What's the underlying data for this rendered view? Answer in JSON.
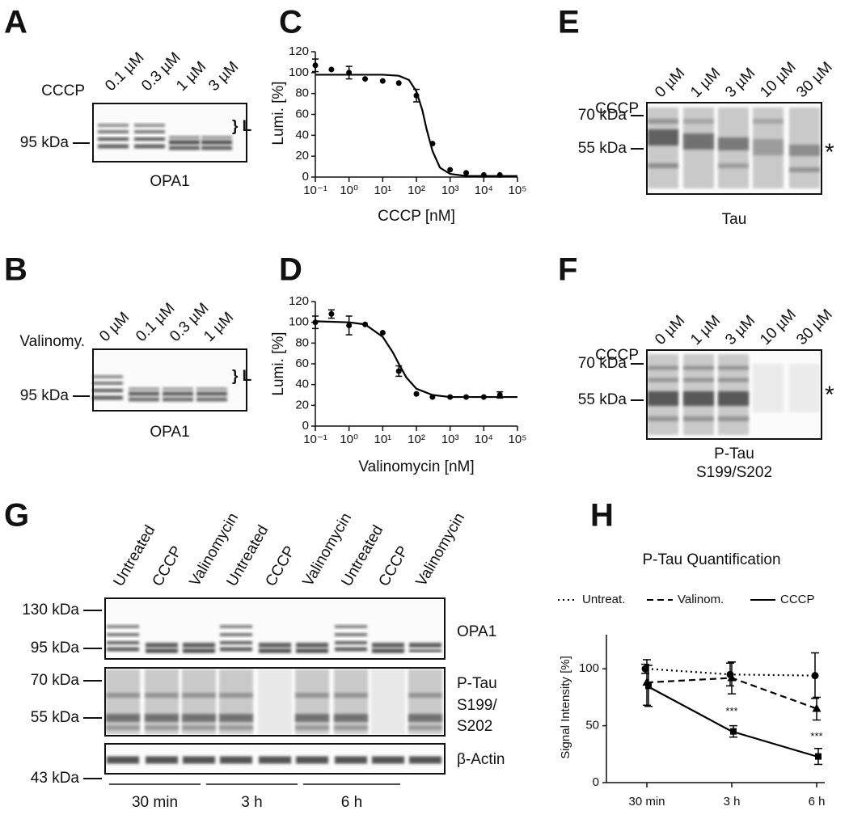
{
  "panels": {
    "A": {
      "letter": "A",
      "treatment": "CCCP",
      "lanes": [
        "0.1 µM",
        "0.3 µM",
        "1 µM",
        "3 µM"
      ],
      "markers": [
        "95 kDa"
      ],
      "bracket": "} L",
      "caption": [
        "OPA1"
      ]
    },
    "B": {
      "letter": "B",
      "treatment": "Valinomy.",
      "lanes": [
        "0 µM",
        "0.1 µM",
        "0.3 µM",
        "1 µM"
      ],
      "markers": [
        "95 kDa"
      ],
      "bracket": "} L",
      "caption": [
        "OPA1"
      ]
    },
    "E": {
      "letter": "E",
      "treatment": "CCCP",
      "lanes": [
        "0 µM",
        "1 µM",
        "3 µM",
        "10 µM",
        "30 µM"
      ],
      "markers": [
        "70 kDa",
        "55 kDa"
      ],
      "asterisk": "*",
      "caption": [
        "Tau"
      ]
    },
    "F": {
      "letter": "F",
      "treatment": "CCCP",
      "lanes": [
        "0 µM",
        "1 µM",
        "3 µM",
        "10 µM",
        "30 µM"
      ],
      "markers": [
        "70 kDa",
        "55 kDa"
      ],
      "asterisk": "*",
      "caption": [
        "P-Tau",
        "S199/S202"
      ]
    },
    "G": {
      "letter": "G",
      "lanes": [
        "Untreated",
        "CCCP",
        "Valinomycin",
        "Untreated",
        "CCCP",
        "Valinomycin",
        "Untreated",
        "CCCP",
        "Valinomycin"
      ],
      "markers": [
        "130 kDa",
        "95 kDa",
        "70 kDa",
        "55 kDa",
        "43 kDa"
      ],
      "blot_labels": [
        "OPA1",
        "P-Tau",
        "S199/",
        "S202",
        "β-Actin"
      ],
      "timepoints": [
        "30 min",
        "3 h",
        "6 h"
      ]
    }
  },
  "chart_data": [
    {
      "type": "scatter",
      "letter": "C",
      "xlabel": "CCCP [nM]",
      "ylabel": "Lumi. [%]",
      "xscale": "log",
      "color": "#000000",
      "xlim": [
        0.1,
        100000
      ],
      "xticks": [
        {
          "value": 0.1,
          "label": "10⁻¹"
        },
        {
          "value": 1,
          "label": "10⁰"
        },
        {
          "value": 10,
          "label": "10¹"
        },
        {
          "value": 100,
          "label": "10²"
        },
        {
          "value": 1000,
          "label": "10³"
        },
        {
          "value": 10000,
          "label": "10⁴"
        },
        {
          "value": 100000,
          "label": "10⁵"
        }
      ],
      "ylim": [
        0,
        120
      ],
      "yticks": [
        0,
        20,
        40,
        60,
        80,
        100,
        120
      ],
      "series": [
        {
          "x": [
            0.1,
            0.3,
            1,
            3,
            10,
            30,
            100,
            300,
            1000,
            3000,
            10000,
            30000
          ],
          "values": [
            107,
            103,
            100,
            94,
            92,
            90,
            78,
            32,
            7,
            4,
            2,
            2
          ],
          "errors": [
            6,
            null,
            6,
            null,
            null,
            null,
            6,
            null,
            null,
            null,
            null,
            null
          ]
        }
      ],
      "fit": {
        "x": [
          0.1,
          1,
          10,
          30,
          60,
          100,
          150,
          200,
          300,
          500,
          1000,
          3000,
          100000
        ],
        "values": [
          98,
          98,
          98,
          97,
          93,
          82,
          64,
          46,
          25,
          9,
          3,
          1,
          1
        ]
      }
    },
    {
      "type": "scatter",
      "letter": "D",
      "xlabel": "Valinomycin [nM]",
      "ylabel": "Lumi. [%]",
      "xscale": "log",
      "color": "#000000",
      "xlim": [
        0.1,
        100000
      ],
      "xticks": [
        {
          "value": 0.1,
          "label": "10⁻¹"
        },
        {
          "value": 1,
          "label": "10⁰"
        },
        {
          "value": 10,
          "label": "10¹"
        },
        {
          "value": 100,
          "label": "10²"
        },
        {
          "value": 1000,
          "label": "10³"
        },
        {
          "value": 10000,
          "label": "10⁴"
        },
        {
          "value": 100000,
          "label": "10⁵"
        }
      ],
      "ylim": [
        0,
        120
      ],
      "yticks": [
        0,
        20,
        40,
        60,
        80,
        100,
        120
      ],
      "series": [
        {
          "x": [
            0.1,
            0.3,
            1,
            3,
            10,
            30,
            100,
            300,
            1000,
            3000,
            10000,
            30000
          ],
          "values": [
            100,
            108,
            97,
            98,
            90,
            53,
            31,
            28,
            28,
            28,
            28,
            30
          ],
          "errors": [
            6,
            4,
            9,
            null,
            null,
            5,
            null,
            null,
            null,
            null,
            null,
            3
          ]
        }
      ],
      "fit": {
        "x": [
          0.1,
          1,
          3,
          10,
          20,
          30,
          50,
          100,
          300,
          1000,
          100000
        ],
        "values": [
          101,
          100,
          98,
          86,
          71,
          60,
          47,
          36,
          30,
          28,
          28
        ]
      }
    },
    {
      "type": "line",
      "letter": "H",
      "title": "P-Tau Quantification",
      "ylabel": "Signal Intensity [%]",
      "legend": "top",
      "color": "#000000",
      "categories": [
        "30 min",
        "3 h",
        "6 h"
      ],
      "ylim": [
        0,
        130
      ],
      "yticks": [
        0,
        50,
        100
      ],
      "series": [
        {
          "name": "Untreat.",
          "dash": "dotted",
          "marker": "circle",
          "values": [
            100,
            95,
            94
          ],
          "errors": [
            4,
            10,
            20
          ]
        },
        {
          "name": "Valinom.",
          "dash": "dashed",
          "marker": "triangle",
          "values": [
            88,
            92,
            65
          ],
          "errors": [
            20,
            14,
            10
          ]
        },
        {
          "name": "CCCP",
          "dash": "solid",
          "marker": "square",
          "values": [
            85,
            45,
            23
          ],
          "errors": [
            18,
            5,
            7
          ]
        }
      ],
      "annotations": [
        {
          "category": "3 h",
          "text": "***"
        },
        {
          "category": "6 h",
          "text": "***"
        }
      ]
    }
  ]
}
